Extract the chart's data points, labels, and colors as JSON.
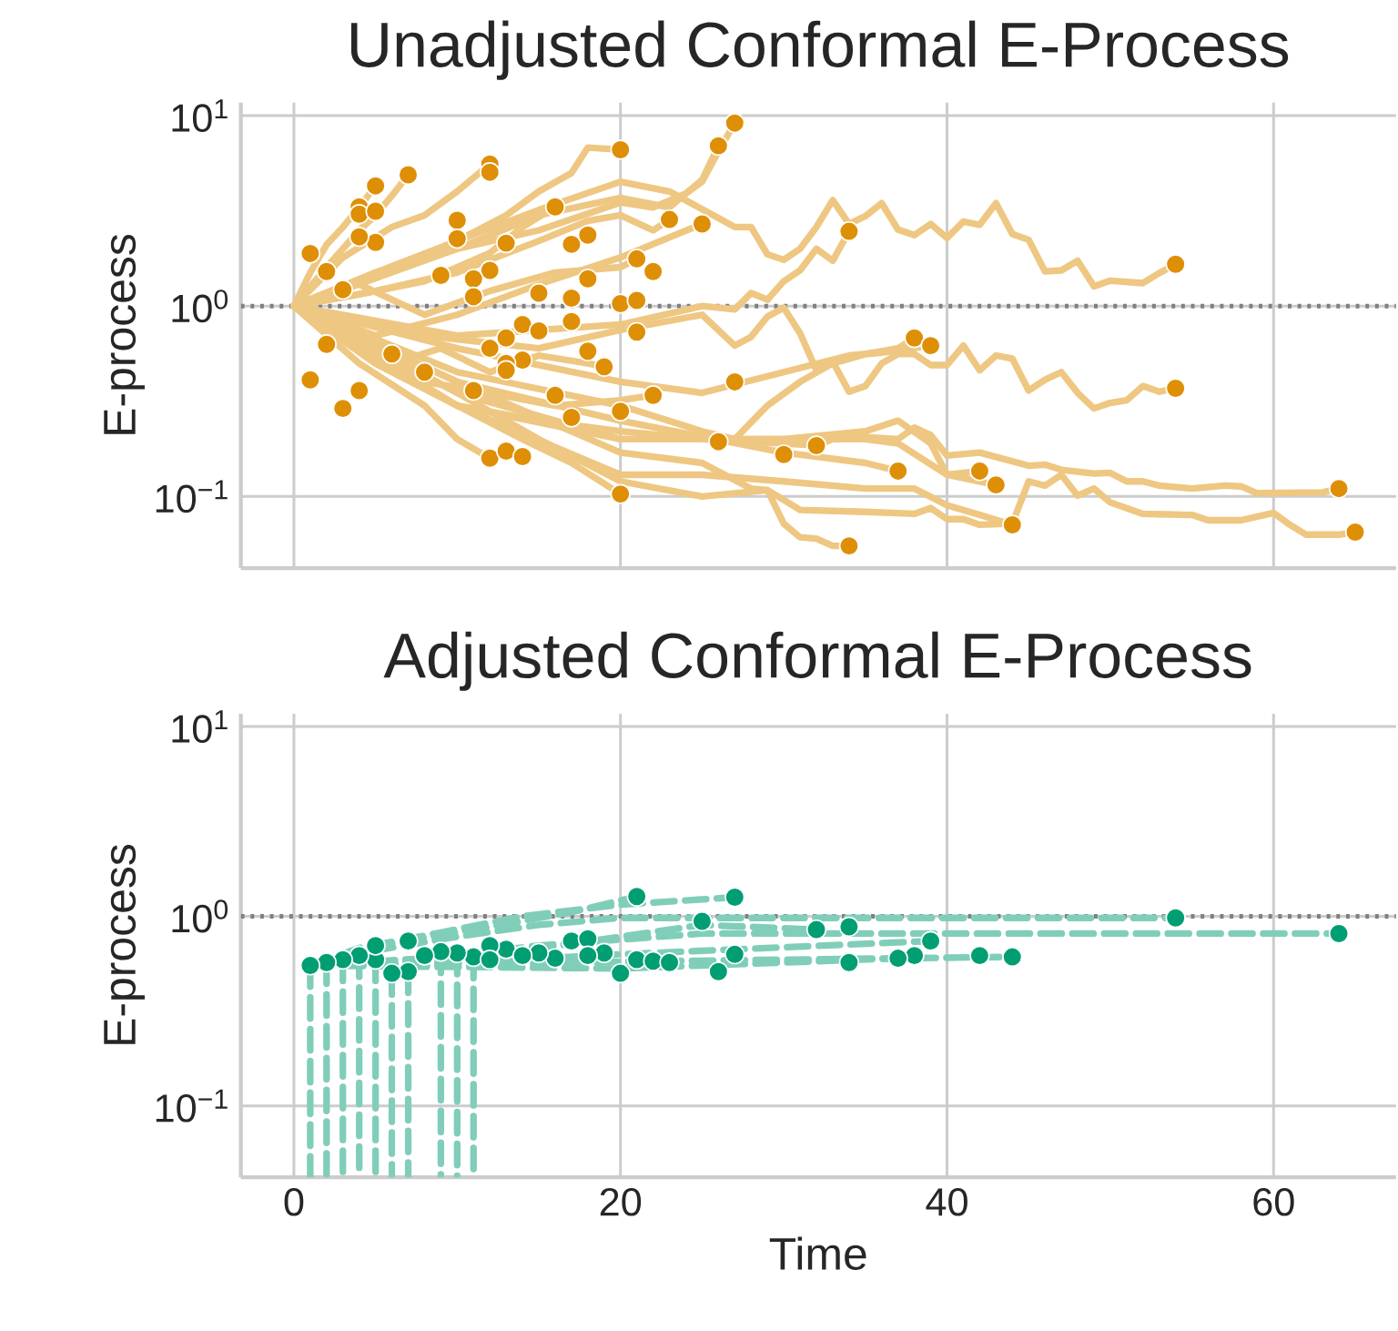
{
  "chart_data": [
    {
      "type": "line",
      "title": "Unadjusted Conformal E-Process",
      "ylabel": "E-process",
      "log": "y",
      "grid": true,
      "tick_labels": "y",
      "line_style": "solid",
      "marker": "none",
      "xlim": [
        -3.25,
        67.5
      ],
      "xticks": [
        0,
        20,
        40,
        60
      ],
      "ylim": [
        0.042,
        11.7
      ],
      "yticks": [
        {
          "value": 0.1,
          "label": "10$^{−1}$"
        },
        {
          "value": 1,
          "label": "10$^{0}$"
        },
        {
          "value": 10,
          "label": "10$^{1}$"
        }
      ],
      "ref_lines": [
        {
          "axis": "y",
          "value": 1,
          "color": "#808080",
          "line_style": "dotted"
        }
      ],
      "series": [
        {
          "color": "#eec782",
          "x": [
            0,
            5,
            10,
            15,
            20,
            23,
            26,
            27,
            28,
            29,
            30,
            31,
            32,
            33,
            34,
            35,
            36,
            37,
            38,
            39,
            40,
            41,
            42,
            43,
            44,
            45,
            46,
            47,
            48,
            49,
            50,
            52,
            53,
            54
          ],
          "values": [
            1,
            1.5,
            2.2,
            3.2,
            4.5,
            4.0,
            2.9,
            2.6,
            2.6,
            1.87,
            1.75,
            2.0,
            2.6,
            3.6,
            2.7,
            2.97,
            3.47,
            2.52,
            2.36,
            2.7,
            2.28,
            2.78,
            2.67,
            3.47,
            2.39,
            2.23,
            1.52,
            1.54,
            1.73,
            1.27,
            1.36,
            1.32,
            1.49,
            1.66
          ]
        },
        {
          "color": "#eec782",
          "x": [
            0,
            10,
            20,
            25,
            27,
            28,
            29,
            30,
            31,
            32,
            33,
            34
          ],
          "values": [
            1,
            0.7,
            0.8,
            1.0,
            0.96,
            1.17,
            1.08,
            1.35,
            1.54,
            2.0,
            1.73,
            2.47
          ]
        },
        {
          "color": "#eec782",
          "x": [
            0,
            8,
            15,
            20,
            25,
            27,
            28,
            29,
            30,
            31,
            32,
            33,
            34,
            35,
            36,
            37,
            38,
            39,
            40,
            41,
            42,
            43,
            44,
            45,
            46,
            47,
            48,
            49,
            50,
            51,
            52,
            53,
            54
          ],
          "values": [
            1,
            0.7,
            0.6,
            0.75,
            0.9,
            0.62,
            0.69,
            0.88,
            0.98,
            0.72,
            0.46,
            0.51,
            0.355,
            0.38,
            0.5,
            0.56,
            0.56,
            0.49,
            0.49,
            0.62,
            0.46,
            0.55,
            0.53,
            0.36,
            0.41,
            0.45,
            0.35,
            0.29,
            0.31,
            0.32,
            0.38,
            0.355,
            0.37
          ]
        },
        {
          "color": "#eec782",
          "x": [
            0,
            5,
            10,
            15,
            20,
            25,
            30,
            32,
            33,
            35,
            37,
            38,
            39,
            40,
            42,
            45,
            46,
            47,
            49,
            50,
            51,
            52,
            53,
            55,
            57,
            58,
            59,
            63,
            64
          ],
          "values": [
            1,
            0.5,
            0.3,
            0.25,
            0.22,
            0.2,
            0.19,
            0.185,
            0.2,
            0.205,
            0.2,
            0.23,
            0.21,
            0.164,
            0.17,
            0.145,
            0.147,
            0.138,
            0.132,
            0.133,
            0.12,
            0.12,
            0.114,
            0.11,
            0.114,
            0.113,
            0.104,
            0.105,
            0.11
          ]
        },
        {
          "color": "#eec782",
          "x": [
            0,
            5,
            10,
            15,
            20,
            25,
            29,
            30,
            31,
            35,
            38,
            39,
            40,
            41,
            42,
            44,
            45,
            46,
            47,
            48,
            49,
            50,
            52,
            55,
            56,
            58,
            60,
            61,
            62,
            64,
            65
          ],
          "values": [
            1,
            0.6,
            0.35,
            0.2,
            0.12,
            0.1,
            0.108,
            0.096,
            0.085,
            0.083,
            0.081,
            0.087,
            0.076,
            0.076,
            0.071,
            0.072,
            0.12,
            0.114,
            0.13,
            0.101,
            0.11,
            0.093,
            0.081,
            0.08,
            0.075,
            0.075,
            0.082,
            0.071,
            0.063,
            0.063,
            0.065
          ]
        },
        {
          "color": "#eec782",
          "x": [
            0,
            10,
            20,
            25,
            30,
            35,
            38,
            40,
            42,
            44
          ],
          "values": [
            1,
            0.3,
            0.13,
            0.13,
            0.12,
            0.11,
            0.11,
            0.09,
            0.08,
            0.071
          ]
        },
        {
          "color": "#eec782",
          "x": [
            0,
            10,
            20,
            25,
            28,
            29,
            30,
            31,
            32,
            33,
            34
          ],
          "values": [
            1,
            0.4,
            0.17,
            0.15,
            0.11,
            0.108,
            0.072,
            0.061,
            0.06,
            0.055,
            0.055
          ]
        },
        {
          "color": "#eec782",
          "x": [
            0,
            5,
            10,
            15,
            20,
            22,
            24,
            25,
            26,
            27
          ],
          "values": [
            1,
            1.4,
            2.0,
            2.5,
            3.5,
            3.3,
            3.9,
            4.5,
            6.5,
            9.15
          ]
        },
        {
          "color": "#eec782",
          "x": [
            0,
            5,
            10,
            15,
            20,
            23,
            25,
            26
          ],
          "values": [
            1,
            1.5,
            2.0,
            3.0,
            3.7,
            3.3,
            4.6,
            6.95
          ]
        },
        {
          "color": "#eec782",
          "x": [
            0,
            10,
            20,
            25,
            27,
            29,
            31,
            33,
            35,
            37,
            38
          ],
          "values": [
            1,
            0.45,
            0.3,
            0.22,
            0.2,
            0.3,
            0.4,
            0.5,
            0.56,
            0.6,
            0.68
          ]
        },
        {
          "color": "#eec782",
          "x": [
            0,
            10,
            20,
            25,
            30,
            34,
            36,
            39
          ],
          "values": [
            1,
            0.6,
            0.4,
            0.35,
            0.45,
            0.55,
            0.57,
            0.62
          ]
        },
        {
          "color": "#eec782",
          "x": [
            0,
            10,
            20,
            30,
            35,
            37,
            39,
            40,
            42
          ],
          "values": [
            1,
            0.35,
            0.2,
            0.2,
            0.22,
            0.25,
            0.19,
            0.13,
            0.136
          ]
        },
        {
          "color": "#eec782",
          "x": [
            0,
            10,
            20,
            30,
            35,
            37,
            40,
            43
          ],
          "values": [
            1,
            0.3,
            0.2,
            0.2,
            0.2,
            0.19,
            0.13,
            0.115
          ]
        },
        {
          "color": "#eec782",
          "x": [
            0,
            10,
            20,
            30,
            35,
            37
          ],
          "values": [
            1,
            0.4,
            0.25,
            0.17,
            0.15,
            0.136
          ]
        },
        {
          "color": "#eec782",
          "x": [
            0,
            1,
            2,
            3,
            4,
            5
          ],
          "values": [
            1,
            1.5,
            2.1,
            2.6,
            3.3,
            4.28
          ]
        },
        {
          "color": "#eec782",
          "x": [
            0,
            2,
            4,
            5,
            6,
            7
          ],
          "values": [
            1,
            1.6,
            2.5,
            3.0,
            3.8,
            4.89
          ]
        },
        {
          "color": "#eec782",
          "x": [
            0,
            3,
            6,
            8,
            10,
            12
          ],
          "values": [
            1,
            1.8,
            2.6,
            3.0,
            4.0,
            5.57
          ]
        },
        {
          "color": "#eec782",
          "x": [
            0,
            5,
            10,
            13,
            15,
            17,
            18,
            20
          ],
          "values": [
            1,
            1.4,
            2.2,
            3.0,
            4.0,
            5.0,
            6.8,
            6.63
          ]
        },
        {
          "color": "#eec782",
          "x": [
            0,
            4,
            8,
            12,
            14,
            16
          ],
          "values": [
            1,
            1.15,
            1.35,
            1.9,
            2.6,
            3.32
          ]
        },
        {
          "color": "#eec782",
          "x": [
            0,
            5,
            10,
            15,
            18,
            20,
            22,
            23
          ],
          "values": [
            1,
            1.2,
            1.5,
            2.2,
            2.8,
            3.0,
            2.5,
            2.85
          ]
        },
        {
          "color": "#eec782",
          "x": [
            0,
            5,
            10,
            15,
            20,
            25
          ],
          "values": [
            1,
            0.7,
            0.9,
            1.3,
            1.8,
            2.7
          ]
        },
        {
          "color": "#eec782",
          "x": [
            0,
            5,
            10,
            14,
            17,
            20
          ],
          "values": [
            1,
            0.5,
            0.3,
            0.2,
            0.15,
            0.103
          ]
        },
        {
          "color": "#eec782",
          "x": [
            0,
            4,
            8,
            10,
            12
          ],
          "values": [
            1,
            0.5,
            0.3,
            0.2,
            0.159
          ]
        },
        {
          "color": "#eec782",
          "x": [
            0,
            4,
            8,
            12,
            16,
            20,
            21
          ],
          "values": [
            1,
            1.3,
            0.9,
            1.2,
            1.5,
            1.6,
            1.77
          ]
        },
        {
          "color": "#eec782",
          "x": [
            0,
            4,
            8,
            12,
            16,
            20,
            22
          ],
          "values": [
            1,
            0.6,
            0.4,
            0.35,
            0.3,
            0.32,
            0.34
          ]
        },
        {
          "color": "#eec782",
          "x": [
            0,
            3,
            6,
            9,
            12,
            15,
            18,
            19
          ],
          "values": [
            1,
            0.7,
            0.5,
            0.6,
            0.45,
            0.55,
            0.5,
            0.48
          ]
        },
        {
          "type": "scatter",
          "color": "#de8f05",
          "x": [
            5,
            7,
            4,
            4,
            5,
            5,
            4,
            12,
            12,
            20,
            26,
            27,
            16,
            23,
            25,
            34,
            54,
            10,
            10,
            13,
            17,
            18,
            21,
            22,
            18,
            9,
            12,
            11,
            15,
            17,
            20,
            21,
            11,
            14,
            17,
            15,
            21,
            13,
            12,
            14,
            13,
            13,
            19,
            18,
            16,
            11,
            17,
            22,
            20,
            27,
            38,
            39,
            54,
            26,
            30,
            32,
            12,
            13,
            14,
            37,
            42,
            43,
            20,
            44,
            34,
            64,
            65,
            1,
            1,
            2,
            2,
            3,
            3,
            4,
            6,
            8
          ],
          "values": [
            4.28,
            4.89,
            3.32,
            3.04,
            3.15,
            2.16,
            2.31,
            5.57,
            5.05,
            6.63,
            6.95,
            9.15,
            3.32,
            2.85,
            2.7,
            2.47,
            1.66,
            2.82,
            2.26,
            2.14,
            2.11,
            2.36,
            1.77,
            1.52,
            1.39,
            1.45,
            1.54,
            1.39,
            1.17,
            1.1,
            1.03,
            1.07,
            1.12,
            0.8,
            0.83,
            0.74,
            0.73,
            0.68,
            0.6,
            0.52,
            0.5,
            0.46,
            0.48,
            0.58,
            0.34,
            0.36,
            0.26,
            0.34,
            0.28,
            0.4,
            0.68,
            0.62,
            0.37,
            0.194,
            0.166,
            0.185,
            0.159,
            0.173,
            0.162,
            0.136,
            0.136,
            0.115,
            0.103,
            0.071,
            0.055,
            0.11,
            0.065,
            1.89,
            0.41,
            1.52,
            0.63,
            1.22,
            0.29,
            0.36,
            0.56,
            0.45
          ]
        }
      ]
    },
    {
      "type": "line",
      "title": "Adjusted Conformal E-Process",
      "xlabel": "Time",
      "ylabel": "E-process",
      "log": "y",
      "grid": true,
      "line_style": "dashed",
      "marker": "none",
      "xlim": [
        -3.25,
        67.5
      ],
      "xticks": [
        0,
        20,
        40,
        60
      ],
      "ylim": [
        0.042,
        11.7
      ],
      "yticks": [
        {
          "value": 0.1,
          "label": "10$^{−1}$"
        },
        {
          "value": 1,
          "label": "10$^{0}$"
        },
        {
          "value": 10,
          "label": "10$^{1}$"
        }
      ],
      "ref_lines": [
        {
          "axis": "y",
          "value": 1,
          "color": "#808080",
          "line_style": "dotted"
        }
      ],
      "series": [
        {
          "color": "#80ceb9",
          "x": [
            1,
            5,
            10,
            15,
            20,
            54
          ],
          "values": [
            0.55,
            0.66,
            0.78,
            0.9,
            0.98,
            0.98
          ]
        },
        {
          "color": "#80ceb9",
          "x": [
            1,
            8,
            15,
            25,
            64
          ],
          "values": [
            0.55,
            0.6,
            0.7,
            0.81,
            0.81
          ]
        },
        {
          "color": "#80ceb9",
          "x": [
            1,
            6,
            12,
            17,
            21
          ],
          "values": [
            0.55,
            0.72,
            0.88,
            1.05,
            1.27
          ]
        },
        {
          "color": "#80ceb9",
          "x": [
            1,
            4,
            9,
            14,
            20,
            27
          ],
          "values": [
            0.55,
            0.68,
            0.82,
            1.0,
            1.15,
            1.26
          ]
        },
        {
          "color": "#80ceb9",
          "x": [
            1,
            10,
            20,
            39
          ],
          "values": [
            0.55,
            0.57,
            0.63,
            0.74
          ]
        },
        {
          "color": "#80ceb9",
          "x": [
            1,
            44
          ],
          "values": [
            0.55,
            0.61
          ]
        },
        {
          "color": "#80ceb9",
          "x": [
            1,
            12,
            25,
            32
          ],
          "values": [
            0.55,
            0.62,
            0.9,
            0.85
          ]
        },
        {
          "color": "#80ceb9",
          "x": [
            1,
            20,
            37
          ],
          "values": [
            0.55,
            0.53,
            0.6
          ]
        },
        {
          "color": "#80ceb9",
          "x": [
            1,
            1
          ],
          "values": [
            0.55,
            0.042
          ]
        },
        {
          "color": "#80ceb9",
          "x": [
            2,
            2
          ],
          "values": [
            0.57,
            0.042
          ]
        },
        {
          "color": "#80ceb9",
          "x": [
            3,
            3
          ],
          "values": [
            0.59,
            0.042
          ]
        },
        {
          "color": "#80ceb9",
          "x": [
            4,
            4
          ],
          "values": [
            0.62,
            0.042
          ]
        },
        {
          "color": "#80ceb9",
          "x": [
            5,
            5
          ],
          "values": [
            0.59,
            0.042
          ]
        },
        {
          "color": "#80ceb9",
          "x": [
            6,
            6
          ],
          "values": [
            0.5,
            0.042
          ]
        },
        {
          "color": "#80ceb9",
          "x": [
            7,
            7
          ],
          "values": [
            0.51,
            0.042
          ]
        },
        {
          "color": "#80ceb9",
          "x": [
            9,
            9
          ],
          "values": [
            0.65,
            0.042
          ]
        },
        {
          "color": "#80ceb9",
          "x": [
            10,
            10
          ],
          "values": [
            0.64,
            0.042
          ]
        },
        {
          "color": "#80ceb9",
          "x": [
            11,
            11
          ],
          "values": [
            0.61,
            0.042
          ]
        },
        {
          "type": "scatter",
          "color": "#029e73",
          "x": [
            21,
            27,
            54,
            64,
            25,
            32,
            34,
            39,
            38,
            37,
            34,
            42,
            44,
            27,
            26,
            20,
            17,
            18,
            21,
            22,
            23,
            16,
            15,
            13,
            12,
            11,
            10,
            9,
            8,
            7,
            7,
            6,
            5,
            5,
            4,
            3,
            2,
            1,
            19,
            18,
            14,
            12
          ],
          "values": [
            1.27,
            1.26,
            0.98,
            0.81,
            0.94,
            0.85,
            0.88,
            0.74,
            0.62,
            0.6,
            0.57,
            0.62,
            0.61,
            0.63,
            0.51,
            0.5,
            0.74,
            0.76,
            0.59,
            0.58,
            0.57,
            0.6,
            0.64,
            0.67,
            0.7,
            0.61,
            0.64,
            0.65,
            0.62,
            0.51,
            0.74,
            0.5,
            0.59,
            0.7,
            0.62,
            0.59,
            0.57,
            0.55,
            0.64,
            0.62,
            0.62,
            0.59
          ]
        }
      ]
    }
  ]
}
